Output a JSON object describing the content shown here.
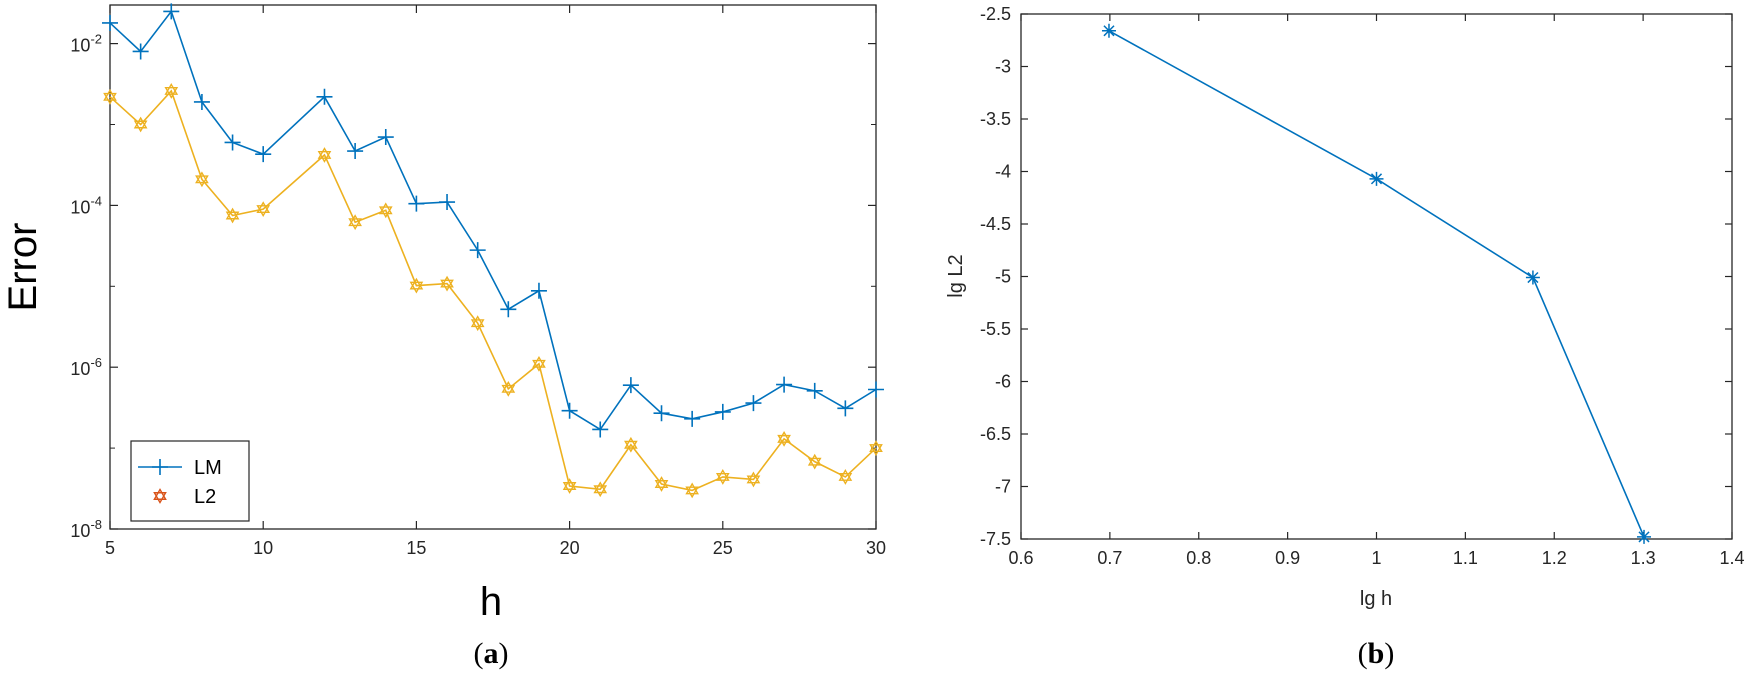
{
  "chart_data": [
    {
      "type": "line",
      "xlabel": "h",
      "ylabel": "Error",
      "xlim": [
        5,
        30
      ],
      "ylim": [
        1e-08,
        0.03
      ],
      "yscale": "log",
      "xticks": [
        "5",
        "10",
        "15",
        "20",
        "25",
        "30"
      ],
      "yticks": [
        {
          "base": "10",
          "exp": "-2"
        },
        {
          "base": "10",
          "exp": "-4"
        },
        {
          "base": "10",
          "exp": "-6"
        },
        {
          "base": "10",
          "exp": "-8"
        }
      ],
      "grid": false,
      "legend_position": "bottom-left",
      "panel_label": "a",
      "x": [
        5,
        6,
        7,
        8,
        9,
        10,
        12,
        13,
        14,
        15,
        16,
        17,
        18,
        19,
        20,
        21,
        22,
        23,
        24,
        25,
        26,
        27,
        28,
        29,
        30
      ],
      "series": [
        {
          "name": "LM",
          "marker": "+",
          "color": "#0072BD",
          "values": [
            0.018,
            0.008,
            0.025,
            0.0019,
            0.0006,
            0.00043,
            0.0022,
            0.00047,
            0.0007,
            0.000105,
            0.00011,
            2.8e-05,
            5.2e-06,
            8.8e-06,
            2.9e-07,
            1.7e-07,
            6e-07,
            2.7e-07,
            2.3e-07,
            2.8e-07,
            3.6e-07,
            6.1e-07,
            5.1e-07,
            3.1e-07,
            5.3e-07
          ]
        },
        {
          "name": "L2",
          "marker": "hexagram",
          "color": "#EDB120",
          "legend_marker_color": "#D95319",
          "values": [
            0.0022,
            0.001,
            0.0026,
            0.00021,
            7.5e-05,
            9e-05,
            0.00042,
            6.2e-05,
            8.7e-05,
            1.02e-05,
            1.08e-05,
            3.5e-06,
            5.4e-07,
            1.1e-06,
            3.4e-08,
            3.1e-08,
            1.1e-07,
            3.6e-08,
            3e-08,
            4.4e-08,
            4.1e-08,
            1.3e-07,
            6.8e-08,
            4.4e-08,
            1e-07
          ]
        }
      ]
    },
    {
      "type": "line",
      "xlabel": "lg h",
      "ylabel": "lg L2",
      "xlim": [
        0.6,
        1.4
      ],
      "ylim": [
        -7.5,
        -2.5
      ],
      "xticks": [
        "0.6",
        "0.7",
        "0.8",
        "0.9",
        "1",
        "1.1",
        "1.2",
        "1.3",
        "1.4"
      ],
      "yticks": [
        "-2.5",
        "-3",
        "-3.5",
        "-4",
        "-4.5",
        "-5",
        "-5.5",
        "-6",
        "-6.5",
        "-7",
        "-7.5"
      ],
      "grid": false,
      "panel_label": "b",
      "x": [
        0.699,
        1.0,
        1.176,
        1.301
      ],
      "series": [
        {
          "marker": "*",
          "color": "#0072BD",
          "values": [
            -2.66,
            -4.07,
            -5.01,
            -7.48
          ]
        }
      ]
    }
  ]
}
